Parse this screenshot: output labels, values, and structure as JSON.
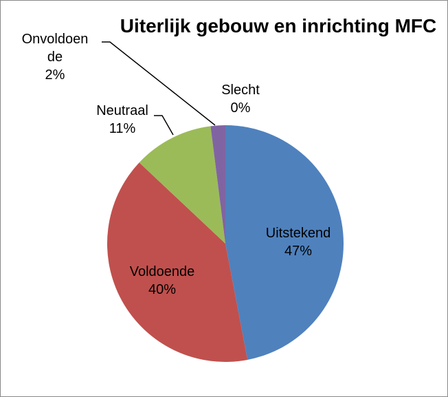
{
  "chart_data": {
    "type": "pie",
    "title": "Uiterlijk gebouw en inrichting MFC",
    "categories": [
      "Uitstekend",
      "Voldoende",
      "Neutraal",
      "Onvoldoende",
      "Slecht"
    ],
    "values": [
      47,
      40,
      11,
      2,
      0
    ],
    "value_labels": [
      "47%",
      "40%",
      "11%",
      "2%",
      "0%"
    ],
    "colors": [
      "#4f81bd",
      "#c0504d",
      "#9bbb59",
      "#8064a2",
      "#4bacc6"
    ]
  }
}
